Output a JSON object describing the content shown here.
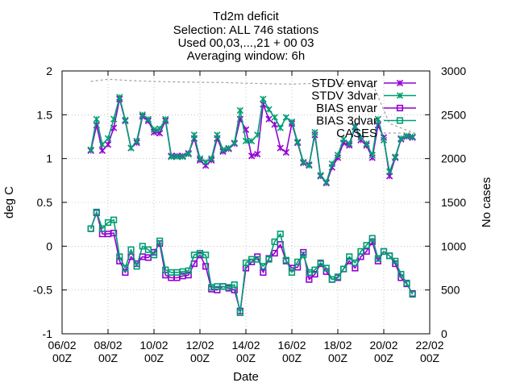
{
  "chart_data": {
    "type": "line",
    "title_lines": [
      "Td2m deficit",
      "Selection: ALL    746 stations",
      "Used 00,03,...,21 + 00 03",
      "Averaging window:  6h"
    ],
    "xlabel": "Date",
    "ylabel": "deg C",
    "y2label": "No cases",
    "x_ticks": [
      {
        "line1": "06/02",
        "line2": "00Z"
      },
      {
        "line1": "08/02",
        "line2": "00Z"
      },
      {
        "line1": "10/02",
        "line2": "00Z"
      },
      {
        "line1": "12/02",
        "line2": "00Z"
      },
      {
        "line1": "14/02",
        "line2": "00Z"
      },
      {
        "line1": "16/02",
        "line2": "00Z"
      },
      {
        "line1": "18/02",
        "line2": "00Z"
      },
      {
        "line1": "20/02",
        "line2": "00Z"
      },
      {
        "line1": "22/02",
        "line2": "00Z"
      }
    ],
    "xlim": [
      0,
      16
    ],
    "ylim": [
      -1,
      2
    ],
    "y_ticks": [
      "-1",
      "-0.5",
      "0",
      "0.5",
      "1",
      "1.5",
      "2"
    ],
    "y2lim": [
      0,
      3000
    ],
    "y2_ticks": [
      "0",
      "500",
      "1000",
      "1500",
      "2000",
      "2500",
      "3000"
    ],
    "grid": true,
    "legend_position": "top-right",
    "x_unit": "days since first tick",
    "x": [
      1.25,
      1.5,
      1.75,
      2,
      2.25,
      2.5,
      2.75,
      3,
      3.25,
      3.5,
      3.75,
      4,
      4.25,
      4.5,
      4.75,
      5,
      5.25,
      5.5,
      5.75,
      6,
      6.25,
      6.5,
      6.75,
      7,
      7.25,
      7.5,
      7.75,
      8,
      8.25,
      8.5,
      8.75,
      9,
      9.25,
      9.5,
      9.75,
      10,
      10.25,
      10.5,
      10.75,
      11,
      11.25,
      11.5,
      11.75,
      12,
      12.25,
      12.5,
      12.75,
      13,
      13.25,
      13.5,
      13.75,
      14,
      14.25,
      14.5,
      14.75,
      15,
      15.25
    ],
    "series": [
      {
        "name": "STDV envar",
        "color": "#9400d3",
        "marker": "x",
        "axis": "left",
        "values": [
          1.09,
          1.38,
          1.09,
          1.16,
          1.35,
          1.68,
          1.43,
          1.12,
          1.18,
          1.48,
          1.43,
          1.3,
          1.29,
          1.43,
          1.03,
          1.03,
          1.03,
          1.06,
          1.23,
          0.98,
          0.92,
          0.98,
          1.23,
          1.08,
          1.11,
          1.17,
          1.45,
          1.33,
          1.03,
          1.05,
          1.62,
          1.45,
          1.39,
          1.12,
          1.07,
          1.4,
          1.18,
          0.95,
          0.93,
          1.27,
          0.8,
          0.72,
          0.9,
          1.01,
          1.18,
          1.15,
          1.36,
          1.21,
          1.15,
          1.01,
          1.38,
          1.24,
          0.8,
          1.01,
          1.22,
          1.25,
          1.24
        ]
      },
      {
        "name": "STDV 3dvar",
        "color": "#009e73",
        "marker": "x",
        "axis": "left",
        "values": [
          1.1,
          1.45,
          1.16,
          1.23,
          1.45,
          1.7,
          1.44,
          1.12,
          1.2,
          1.5,
          1.45,
          1.33,
          1.34,
          1.45,
          1.02,
          1.02,
          1.02,
          1.05,
          1.27,
          1.0,
          0.96,
          1.0,
          1.27,
          1.1,
          1.12,
          1.18,
          1.55,
          1.2,
          1.2,
          1.27,
          1.68,
          1.56,
          1.47,
          1.35,
          1.47,
          1.42,
          1.19,
          0.96,
          0.92,
          1.3,
          0.81,
          0.73,
          0.94,
          1.04,
          1.22,
          1.17,
          1.37,
          1.24,
          1.17,
          1.04,
          1.45,
          1.21,
          0.85,
          1.02,
          1.23,
          1.26,
          1.25
        ]
      },
      {
        "name": "BIAS envar",
        "color": "#9400d3",
        "marker": "open-square",
        "axis": "left",
        "values": [
          0.2,
          0.38,
          0.14,
          0.14,
          0.15,
          -0.17,
          -0.3,
          -0.12,
          -0.2,
          -0.12,
          -0.13,
          -0.07,
          0.03,
          -0.33,
          -0.36,
          -0.36,
          -0.34,
          -0.33,
          -0.2,
          -0.1,
          -0.23,
          -0.49,
          -0.5,
          -0.46,
          -0.48,
          -0.5,
          -0.74,
          -0.25,
          -0.18,
          -0.12,
          -0.3,
          -0.14,
          -0.08,
          0.02,
          -0.17,
          -0.25,
          -0.24,
          -0.07,
          -0.38,
          -0.32,
          -0.2,
          -0.29,
          -0.38,
          -0.36,
          -0.26,
          -0.17,
          -0.25,
          -0.12,
          -0.06,
          0.05,
          -0.17,
          -0.06,
          -0.11,
          -0.2,
          -0.36,
          -0.43,
          -0.54
        ]
      },
      {
        "name": "BIAS 3dvar",
        "color": "#009e73",
        "marker": "open-square",
        "axis": "left",
        "values": [
          0.2,
          0.39,
          0.2,
          0.27,
          0.3,
          -0.12,
          -0.25,
          -0.04,
          -0.23,
          0.0,
          -0.04,
          -0.1,
          0.06,
          -0.27,
          -0.3,
          -0.3,
          -0.29,
          -0.28,
          -0.1,
          -0.08,
          -0.1,
          -0.47,
          -0.46,
          -0.46,
          -0.47,
          -0.44,
          -0.76,
          -0.19,
          -0.15,
          -0.15,
          -0.23,
          -0.15,
          0.05,
          0.14,
          -0.16,
          -0.3,
          -0.18,
          -0.1,
          -0.3,
          -0.27,
          -0.19,
          -0.25,
          -0.38,
          -0.35,
          -0.26,
          -0.12,
          -0.19,
          -0.06,
          0.01,
          0.09,
          -0.14,
          -0.06,
          -0.11,
          -0.17,
          -0.32,
          -0.42,
          -0.55
        ]
      },
      {
        "name": "CASES",
        "color": "#a0a0a0",
        "marker": "none",
        "dash": "3,3",
        "axis": "right",
        "x": [
          1.25,
          2,
          3,
          4,
          5,
          6,
          7,
          8,
          9,
          10,
          11,
          12,
          13,
          13.6,
          14.25,
          15.25
        ],
        "values": [
          2880,
          2905,
          2890,
          2880,
          2875,
          2870,
          2868,
          2860,
          2855,
          2850,
          2858,
          2855,
          2850,
          2800,
          2400,
          2300
        ]
      }
    ]
  }
}
